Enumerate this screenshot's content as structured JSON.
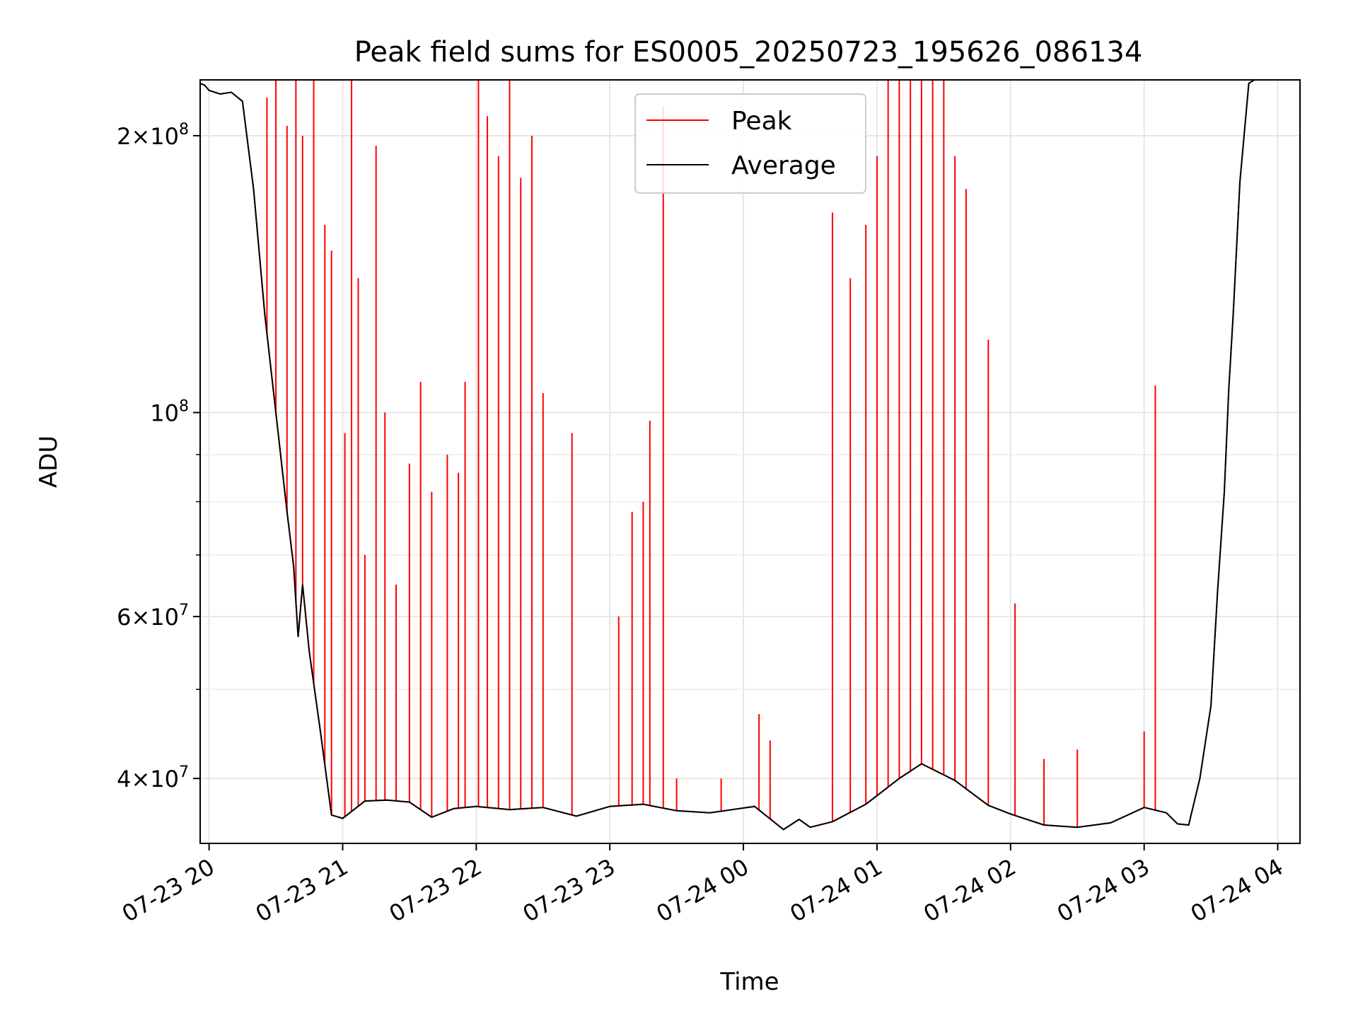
{
  "chart_data": {
    "type": "line",
    "title": "Peak field sums for ES0005_20250723_195626_086134",
    "xlabel": "Time",
    "ylabel": "ADU",
    "yscale": "log",
    "ylim": [
      34000000,
      230000000
    ],
    "xlim": [
      "2025-07-23T19:56",
      "2025-07-24T04:10"
    ],
    "grid": true,
    "legend_position": "upper center",
    "x_ticks": [
      {
        "t": "2025-07-23T20:00",
        "label": "07-23 20"
      },
      {
        "t": "2025-07-23T21:00",
        "label": "07-23 21"
      },
      {
        "t": "2025-07-23T22:00",
        "label": "07-23 22"
      },
      {
        "t": "2025-07-23T23:00",
        "label": "07-23 23"
      },
      {
        "t": "2025-07-24T00:00",
        "label": "07-24 00"
      },
      {
        "t": "2025-07-24T01:00",
        "label": "07-24 01"
      },
      {
        "t": "2025-07-24T02:00",
        "label": "07-24 02"
      },
      {
        "t": "2025-07-24T03:00",
        "label": "07-24 03"
      },
      {
        "t": "2025-07-24T04:00",
        "label": "07-24 04"
      }
    ],
    "y_ticks": [
      {
        "v": 40000000,
        "mant": "4",
        "exp": "7"
      },
      {
        "v": 60000000,
        "mant": "6",
        "exp": "7"
      },
      {
        "v": 100000000,
        "mant": "",
        "exp": "8"
      },
      {
        "v": 200000000,
        "mant": "2",
        "exp": "8"
      }
    ],
    "y_minor_ticks": [
      50000000,
      70000000,
      80000000,
      90000000
    ],
    "series": [
      {
        "name": "Average",
        "color": "#000000",
        "points": [
          [
            "2025-07-23T19:56",
            228000000
          ],
          [
            "2025-07-23T19:58",
            227000000
          ],
          [
            "2025-07-23T20:00",
            224000000
          ],
          [
            "2025-07-23T20:05",
            222000000
          ],
          [
            "2025-07-23T20:10",
            223000000
          ],
          [
            "2025-07-23T20:15",
            218000000
          ],
          [
            "2025-07-23T20:20",
            175000000
          ],
          [
            "2025-07-23T20:25",
            128000000
          ],
          [
            "2025-07-23T20:30",
            100000000
          ],
          [
            "2025-07-23T20:35",
            78000000
          ],
          [
            "2025-07-23T20:38",
            68000000
          ],
          [
            "2025-07-23T20:40",
            57000000
          ],
          [
            "2025-07-23T20:42",
            65000000
          ],
          [
            "2025-07-23T20:45",
            55000000
          ],
          [
            "2025-07-23T20:50",
            45000000
          ],
          [
            "2025-07-23T20:55",
            36500000
          ],
          [
            "2025-07-23T21:00",
            36200000
          ],
          [
            "2025-07-23T21:10",
            37800000
          ],
          [
            "2025-07-23T21:20",
            37900000
          ],
          [
            "2025-07-23T21:30",
            37700000
          ],
          [
            "2025-07-23T21:40",
            36300000
          ],
          [
            "2025-07-23T21:50",
            37100000
          ],
          [
            "2025-07-23T22:00",
            37300000
          ],
          [
            "2025-07-23T22:15",
            37000000
          ],
          [
            "2025-07-23T22:30",
            37200000
          ],
          [
            "2025-07-23T22:45",
            36400000
          ],
          [
            "2025-07-23T23:00",
            37300000
          ],
          [
            "2025-07-23T23:15",
            37500000
          ],
          [
            "2025-07-23T23:30",
            36900000
          ],
          [
            "2025-07-23T23:45",
            36700000
          ],
          [
            "2025-07-24T00:05",
            37300000
          ],
          [
            "2025-07-24T00:18",
            35200000
          ],
          [
            "2025-07-24T00:25",
            36100000
          ],
          [
            "2025-07-24T00:30",
            35400000
          ],
          [
            "2025-07-24T00:40",
            35900000
          ],
          [
            "2025-07-24T00:55",
            37500000
          ],
          [
            "2025-07-24T01:10",
            40000000
          ],
          [
            "2025-07-24T01:20",
            41500000
          ],
          [
            "2025-07-24T01:35",
            39800000
          ],
          [
            "2025-07-24T01:50",
            37400000
          ],
          [
            "2025-07-24T02:00",
            36600000
          ],
          [
            "2025-07-24T02:15",
            35600000
          ],
          [
            "2025-07-24T02:30",
            35400000
          ],
          [
            "2025-07-24T02:45",
            35800000
          ],
          [
            "2025-07-24T03:00",
            37200000
          ],
          [
            "2025-07-24T03:10",
            36700000
          ],
          [
            "2025-07-24T03:15",
            35700000
          ],
          [
            "2025-07-24T03:20",
            35600000
          ],
          [
            "2025-07-24T03:25",
            40000000
          ],
          [
            "2025-07-24T03:30",
            48000000
          ],
          [
            "2025-07-24T03:33",
            64000000
          ],
          [
            "2025-07-24T03:36",
            82000000
          ],
          [
            "2025-07-24T03:38",
            106000000
          ],
          [
            "2025-07-24T03:40",
            128000000
          ],
          [
            "2025-07-24T03:43",
            178000000
          ],
          [
            "2025-07-24T03:47",
            228000000
          ],
          [
            "2025-07-24T03:52",
            232000000
          ]
        ]
      },
      {
        "name": "Peak",
        "color": "#ff0000",
        "spikes": [
          [
            "2025-07-23T20:26",
            220000000
          ],
          [
            "2025-07-23T20:30",
            230000000
          ],
          [
            "2025-07-23T20:35",
            205000000
          ],
          [
            "2025-07-23T20:39",
            230000000
          ],
          [
            "2025-07-23T20:42",
            200000000
          ],
          [
            "2025-07-23T20:47",
            230000000
          ],
          [
            "2025-07-23T20:52",
            160000000
          ],
          [
            "2025-07-23T20:55",
            150000000
          ],
          [
            "2025-07-23T21:01",
            95000000
          ],
          [
            "2025-07-23T21:04",
            230000000
          ],
          [
            "2025-07-23T21:07",
            140000000
          ],
          [
            "2025-07-23T21:10",
            70000000
          ],
          [
            "2025-07-23T21:15",
            195000000
          ],
          [
            "2025-07-23T21:19",
            100000000
          ],
          [
            "2025-07-23T21:24",
            65000000
          ],
          [
            "2025-07-23T21:30",
            88000000
          ],
          [
            "2025-07-23T21:35",
            108000000
          ],
          [
            "2025-07-23T21:40",
            82000000
          ],
          [
            "2025-07-23T21:47",
            90000000
          ],
          [
            "2025-07-23T21:52",
            86000000
          ],
          [
            "2025-07-23T21:55",
            108000000
          ],
          [
            "2025-07-23T22:01",
            230000000
          ],
          [
            "2025-07-23T22:05",
            210000000
          ],
          [
            "2025-07-23T22:10",
            190000000
          ],
          [
            "2025-07-23T22:15",
            230000000
          ],
          [
            "2025-07-23T22:20",
            180000000
          ],
          [
            "2025-07-23T22:25",
            200000000
          ],
          [
            "2025-07-23T22:30",
            105000000
          ],
          [
            "2025-07-23T22:43",
            95000000
          ],
          [
            "2025-07-23T23:04",
            60000000
          ],
          [
            "2025-07-23T23:10",
            78000000
          ],
          [
            "2025-07-23T23:15",
            80000000
          ],
          [
            "2025-07-23T23:18",
            98000000
          ],
          [
            "2025-07-23T23:24",
            215000000
          ],
          [
            "2025-07-23T23:30",
            40000000
          ],
          [
            "2025-07-23T23:50",
            40000000
          ],
          [
            "2025-07-24T00:07",
            47000000
          ],
          [
            "2025-07-24T00:12",
            44000000
          ],
          [
            "2025-07-24T00:40",
            165000000
          ],
          [
            "2025-07-24T00:48",
            140000000
          ],
          [
            "2025-07-24T00:55",
            160000000
          ],
          [
            "2025-07-24T01:00",
            190000000
          ],
          [
            "2025-07-24T01:05",
            230000000
          ],
          [
            "2025-07-24T01:10",
            230000000
          ],
          [
            "2025-07-24T01:15",
            230000000
          ],
          [
            "2025-07-24T01:20",
            230000000
          ],
          [
            "2025-07-24T01:25",
            230000000
          ],
          [
            "2025-07-24T01:30",
            230000000
          ],
          [
            "2025-07-24T01:35",
            190000000
          ],
          [
            "2025-07-24T01:40",
            175000000
          ],
          [
            "2025-07-24T01:50",
            120000000
          ],
          [
            "2025-07-24T02:02",
            62000000
          ],
          [
            "2025-07-24T02:15",
            42000000
          ],
          [
            "2025-07-24T02:30",
            43000000
          ],
          [
            "2025-07-24T03:00",
            45000000
          ],
          [
            "2025-07-24T03:05",
            107000000
          ]
        ]
      }
    ]
  }
}
